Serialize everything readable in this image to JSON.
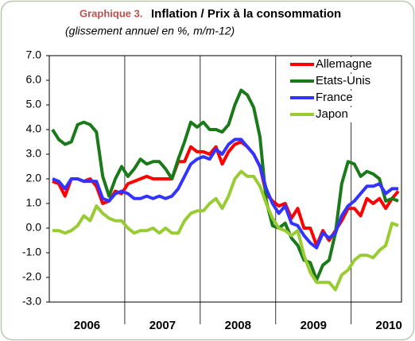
{
  "chart_data": {
    "type": "line",
    "title_prefix": "Graphique 3.",
    "title": "Inflation / Prix à la consommation",
    "subtitle": "(glissement annuel en %, m/m-12)",
    "categories": [
      null,
      null,
      null,
      null,
      null,
      null,
      "2006",
      null,
      null,
      null,
      null,
      null,
      null,
      null,
      null,
      null,
      null,
      null,
      "2007",
      null,
      null,
      null,
      null,
      null,
      null,
      null,
      null,
      null,
      null,
      null,
      "2008",
      null,
      null,
      null,
      null,
      null,
      null,
      null,
      null,
      null,
      null,
      null,
      "2009",
      null,
      null,
      null,
      null,
      null,
      null,
      null,
      null,
      null,
      null,
      null,
      "2010",
      null
    ],
    "series": [
      {
        "name": "Allemagne",
        "color": "#ff0000",
        "values": [
          1.9,
          1.8,
          1.3,
          2.0,
          2.0,
          1.9,
          2.0,
          1.7,
          1.0,
          1.1,
          1.5,
          1.4,
          1.8,
          1.9,
          2.0,
          2.1,
          2.0,
          2.0,
          2.0,
          2.0,
          2.7,
          2.7,
          3.3,
          3.1,
          3.1,
          3.0,
          3.3,
          2.6,
          3.1,
          3.4,
          3.5,
          3.3,
          3.0,
          2.5,
          1.4,
          1.1,
          0.9,
          1.0,
          0.4,
          0.8,
          0.0,
          0.0,
          -0.7,
          -0.1,
          -0.5,
          -0.1,
          0.3,
          0.8,
          0.8,
          0.5,
          1.2,
          1.0,
          1.2,
          0.8,
          1.2,
          1.5
        ]
      },
      {
        "name": "Etats-Unis",
        "color": "#1a7a1a",
        "values": [
          4.0,
          3.6,
          3.4,
          3.5,
          4.2,
          4.3,
          4.2,
          3.9,
          2.1,
          1.3,
          2.0,
          2.5,
          2.1,
          2.4,
          2.8,
          2.6,
          2.7,
          2.7,
          2.4,
          2.0,
          2.8,
          3.5,
          4.3,
          4.1,
          4.3,
          4.0,
          4.0,
          3.9,
          4.2,
          5.0,
          5.6,
          5.4,
          4.9,
          3.7,
          1.1,
          0.1,
          0.0,
          0.2,
          -0.4,
          -0.7,
          -1.3,
          -1.4,
          -2.1,
          -1.5,
          -1.3,
          -0.2,
          1.8,
          2.7,
          2.6,
          2.1,
          2.3,
          2.2,
          2.0,
          1.1,
          1.2,
          1.1
        ]
      },
      {
        "name": "France",
        "color": "#3333ff",
        "values": [
          2.0,
          1.9,
          1.6,
          2.0,
          2.0,
          1.9,
          1.9,
          1.9,
          1.2,
          1.1,
          1.4,
          1.5,
          1.4,
          1.2,
          1.2,
          1.3,
          1.2,
          1.3,
          1.2,
          1.3,
          1.6,
          2.1,
          2.6,
          2.8,
          2.9,
          2.8,
          3.2,
          3.0,
          3.4,
          3.6,
          3.6,
          3.3,
          3.0,
          2.5,
          1.6,
          1.0,
          0.6,
          0.9,
          0.2,
          0.1,
          -0.3,
          -0.6,
          -0.8,
          -0.2,
          -0.4,
          -0.2,
          0.5,
          0.9,
          1.1,
          1.4,
          1.7,
          1.7,
          1.8,
          1.4,
          1.6,
          1.6
        ]
      },
      {
        "name": "Japon",
        "color": "#99cc33",
        "values": [
          -0.1,
          -0.1,
          -0.2,
          -0.1,
          0.1,
          0.5,
          0.3,
          0.9,
          0.6,
          0.4,
          0.3,
          0.3,
          0.0,
          -0.2,
          -0.1,
          -0.1,
          0.0,
          -0.2,
          0.0,
          -0.2,
          -0.2,
          0.3,
          0.6,
          0.7,
          0.7,
          1.0,
          1.2,
          0.8,
          1.3,
          2.0,
          2.3,
          2.1,
          2.1,
          1.7,
          1.0,
          0.4,
          0.0,
          -0.1,
          -0.3,
          -0.1,
          -1.1,
          -1.8,
          -2.2,
          -2.2,
          -2.2,
          -2.5,
          -1.9,
          -1.7,
          -1.3,
          -1.1,
          -1.1,
          -1.2,
          -0.9,
          -0.7,
          0.2,
          0.1
        ]
      }
    ],
    "ylim": [
      -3,
      7
    ],
    "yticks": [
      {
        "value": -3,
        "label": "-3.0"
      },
      {
        "value": -2,
        "label": "-2.0"
      },
      {
        "value": -1,
        "label": "-1.0"
      },
      {
        "value": 0,
        "label": "0.0"
      },
      {
        "value": 1,
        "label": "1.0"
      },
      {
        "value": 2,
        "label": "2.0"
      },
      {
        "value": 3,
        "label": "3.0"
      },
      {
        "value": 4,
        "label": "4.0"
      },
      {
        "value": 5,
        "label": "5.0"
      },
      {
        "value": 6,
        "label": "6.0"
      },
      {
        "value": 7,
        "label": "7.0"
      }
    ],
    "legend": "upper right"
  }
}
